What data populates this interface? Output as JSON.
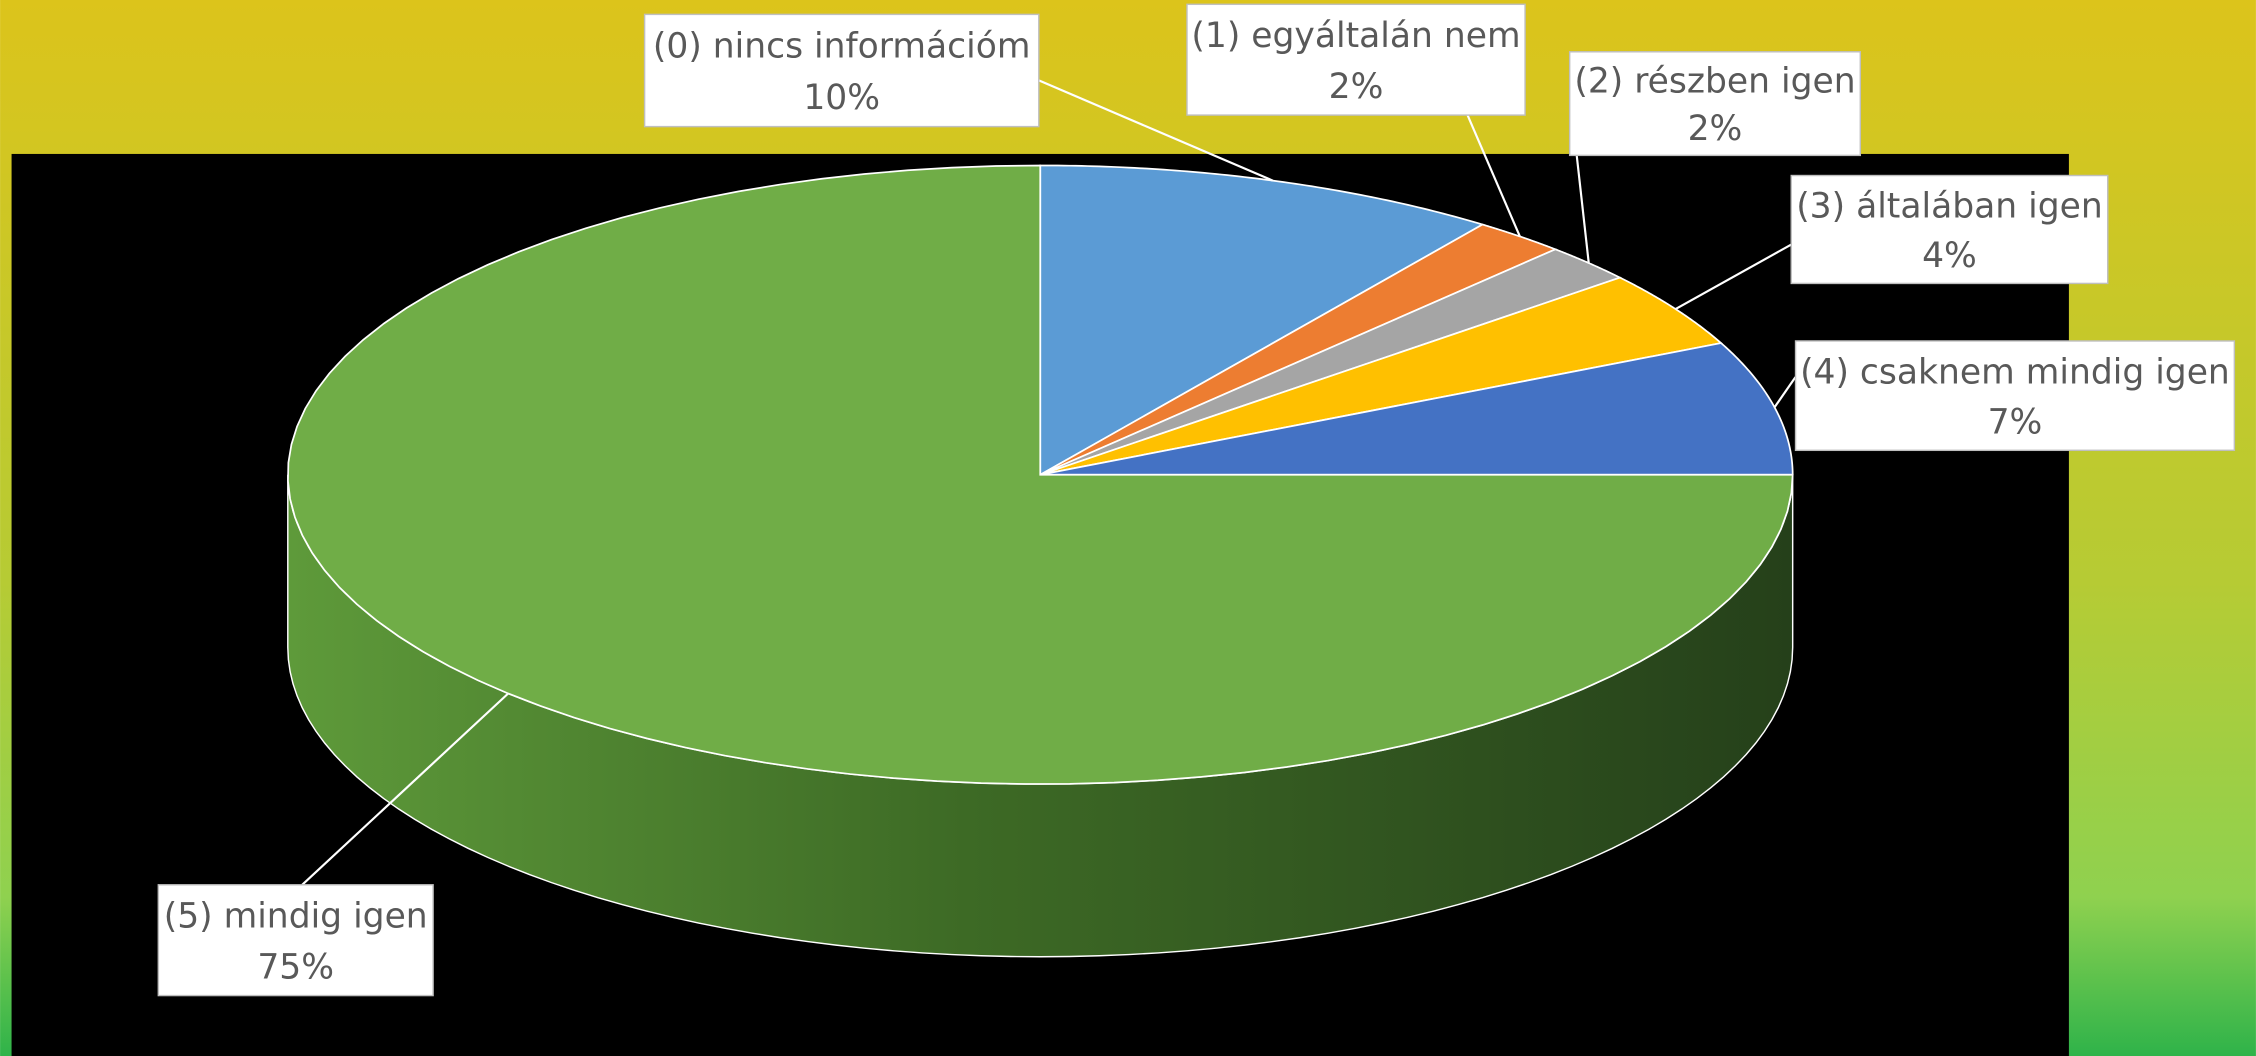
{
  "chart_data": {
    "type": "pie3d",
    "categories": [
      "(0) nincs információm",
      "(1) egyáltalán nem",
      "(2) részben igen",
      "(3) általában igen",
      "(4) csaknem mindig igen",
      "(5) mindig igen"
    ],
    "values": [
      10,
      2,
      2,
      4,
      7,
      75
    ],
    "value_labels": [
      "10%",
      "2%",
      "2%",
      "4%",
      "7%",
      "75%"
    ],
    "colors": [
      "#5b9bd5",
      "#ed7d31",
      "#a5a5a5",
      "#ffc000",
      "#4472c4",
      "#70ad47"
    ]
  }
}
